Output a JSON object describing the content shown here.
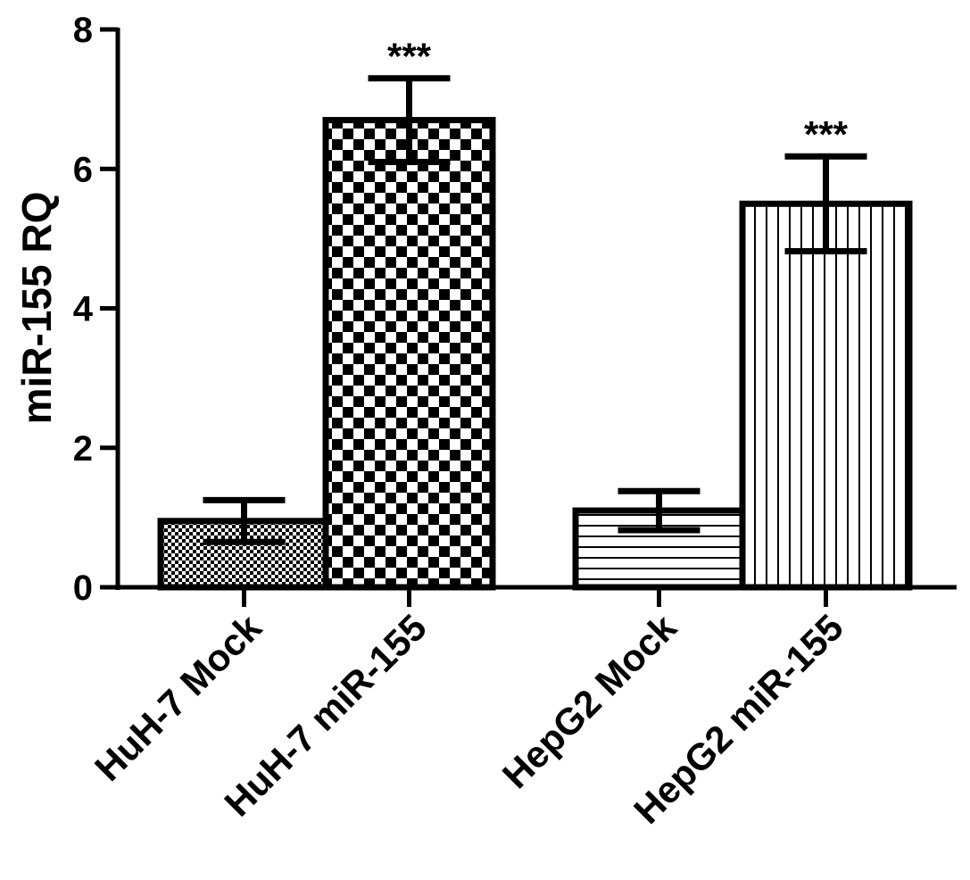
{
  "chart_data": {
    "type": "bar",
    "title": "",
    "xlabel": "",
    "ylabel": "miR-155 RQ",
    "ylim": [
      0,
      8
    ],
    "yticks": [
      0,
      2,
      4,
      6,
      8
    ],
    "grid": false,
    "categories": [
      "HuH-7 Mock",
      "HuH-7 miR-155",
      "HepG2 Mock",
      "HepG2 miR-155"
    ],
    "values": [
      0.95,
      6.7,
      1.1,
      5.5
    ],
    "errors": [
      0.3,
      0.6,
      0.28,
      0.68
    ],
    "patterns": [
      "fine-dots",
      "checkerboard",
      "horizontal-lines",
      "vertical-lines"
    ],
    "significance": [
      "",
      "***",
      "",
      "***"
    ],
    "colors": {
      "bar_fill": "#ffffff",
      "bar_edge": "#000000",
      "axis": "#000000"
    }
  }
}
